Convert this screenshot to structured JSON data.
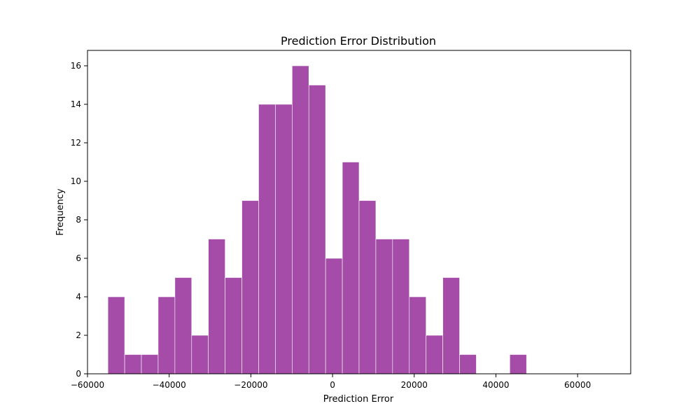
{
  "chart_data": {
    "type": "bar",
    "title": "Prediction Error Distribution",
    "xlabel": "Prediction Error",
    "ylabel": "Frequency",
    "bin_start": -55000,
    "bin_width": 4100,
    "values": [
      4,
      1,
      1,
      4,
      5,
      2,
      7,
      5,
      9,
      14,
      14,
      16,
      15,
      6,
      11,
      9,
      7,
      7,
      4,
      2,
      5,
      1,
      0,
      0,
      1
    ],
    "xlim": [
      -60000,
      73000
    ],
    "ylim": [
      0,
      16.8
    ],
    "xticks": [
      -60000,
      -40000,
      -20000,
      0,
      20000,
      40000,
      60000
    ],
    "yticks": [
      0,
      2,
      4,
      6,
      8,
      10,
      12,
      14,
      16
    ],
    "bar_color": "#a54ca8",
    "edge_color": "#ffffff",
    "grid": false
  }
}
